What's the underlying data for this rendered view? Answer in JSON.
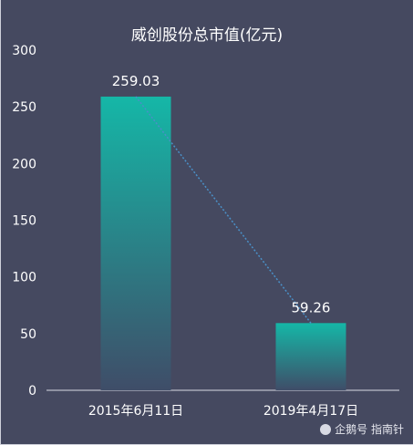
{
  "chart_data": {
    "type": "bar",
    "title": "威创股份总市值(亿元)",
    "categories": [
      "2015年6月11日",
      "2019年4月17日"
    ],
    "values": [
      259.03,
      59.26
    ],
    "data_labels": [
      "259.03",
      "59.26"
    ],
    "yticks": [
      "0",
      "50",
      "100",
      "150",
      "200",
      "250",
      "300"
    ],
    "ylim": [
      0,
      300
    ],
    "grid": false,
    "trend_line": "dotted",
    "colors": {
      "bar_top": "#15b7a7",
      "bar_bottom": "#3f4d68",
      "trend": "#4a90c8",
      "background": "#454960"
    }
  },
  "watermark": {
    "text": "企鹅号 指南针",
    "icon": "penguin-icon"
  }
}
